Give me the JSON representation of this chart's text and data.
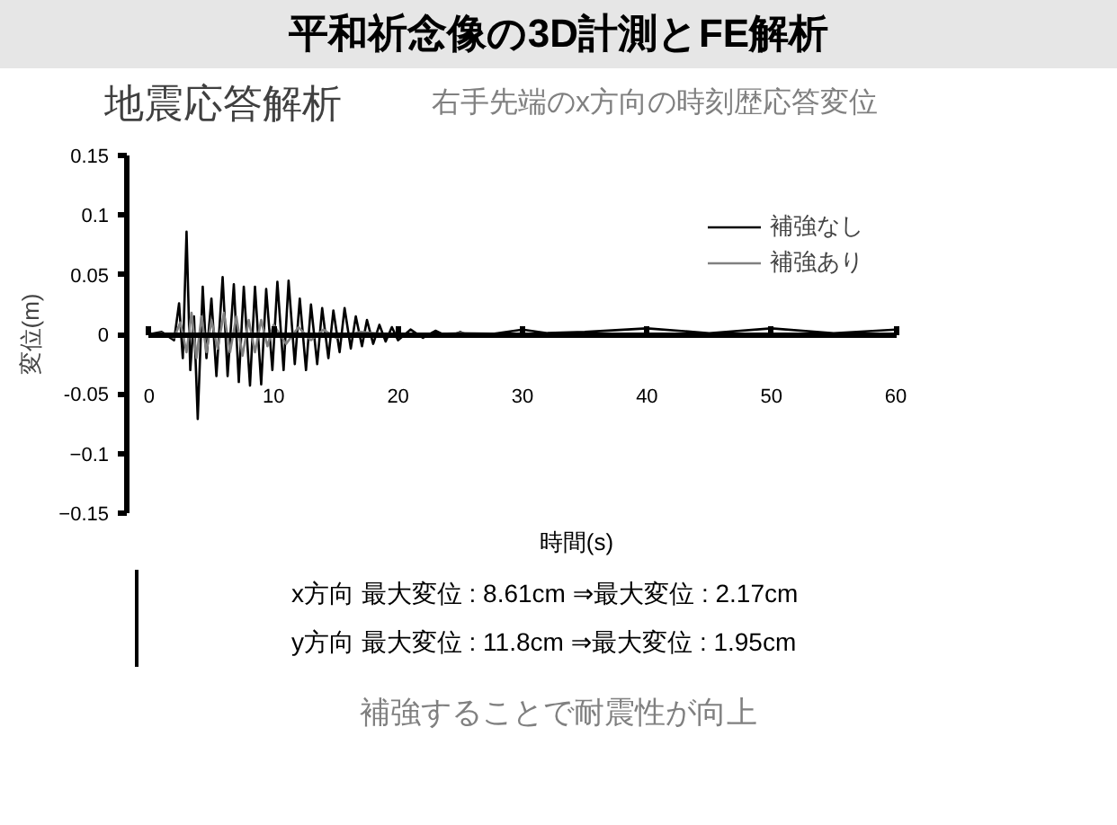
{
  "chart_data": {
    "type": "line",
    "title": "平和祈念像の3D計測とFE解析",
    "subtitle": "地震応答解析",
    "xlabel": "時間(s)",
    "ylabel": "変位(m)",
    "annotations": [
      "右手先端のx方向の時刻歴応答変位",
      "x方向  最大変位 : 8.61cm ⇒最大変位 : 2.17cm",
      "y方向  最大変位 : 11.8cm ⇒最大変位 : 1.95cm",
      "補強することで耐震性が向上"
    ],
    "xlim": [
      0,
      60
    ],
    "ylim": [
      -0.15,
      0.15
    ],
    "xticks": [
      0,
      10,
      20,
      30,
      40,
      50,
      60
    ],
    "yticks": [
      -0.15,
      -0.1,
      -0.05,
      0,
      0.05,
      0.1,
      0.15
    ],
    "legend": "top right",
    "series": [
      {
        "name": "補強なし",
        "color": "#000000",
        "x": [
          0,
          1,
          2,
          2.4,
          2.7,
          3.0,
          3.3,
          3.6,
          3.9,
          4.3,
          4.6,
          5.0,
          5.4,
          5.9,
          6.3,
          6.8,
          7.2,
          7.6,
          8.1,
          8.5,
          9.0,
          9.4,
          9.9,
          10.3,
          10.8,
          11.2,
          11.7,
          12.1,
          12.6,
          13.0,
          13.5,
          13.9,
          14.4,
          14.8,
          15.3,
          15.7,
          16.2,
          16.6,
          17.1,
          17.5,
          18.0,
          18.5,
          19.0,
          19.5,
          20,
          21,
          22,
          23,
          24,
          25,
          26,
          28,
          30,
          32,
          35,
          40,
          45,
          50,
          55,
          60
        ],
        "values": [
          0,
          0.002,
          -0.005,
          0.026,
          -0.02,
          0.086,
          -0.03,
          0.015,
          -0.071,
          0.04,
          -0.02,
          0.03,
          -0.035,
          0.048,
          -0.035,
          0.042,
          -0.04,
          0.04,
          -0.043,
          0.04,
          -0.042,
          0.038,
          -0.03,
          0.044,
          -0.03,
          0.045,
          -0.025,
          0.03,
          -0.03,
          0.025,
          -0.025,
          0.022,
          -0.02,
          0.02,
          -0.015,
          0.022,
          -0.012,
          0.015,
          -0.01,
          0.012,
          -0.008,
          0.008,
          -0.006,
          0.006,
          -0.005,
          0.004,
          -0.003,
          0.003,
          -0.002,
          0.002,
          -0.002,
          0.001,
          0.004,
          0.001,
          0.002,
          0.005,
          0.001,
          0.005,
          0.001,
          0.004
        ]
      },
      {
        "name": "補強あり",
        "color": "#808080",
        "x": [
          0,
          1,
          2,
          2.5,
          3.0,
          3.4,
          3.8,
          4.2,
          4.6,
          5.0,
          5.5,
          6.0,
          6.5,
          7.0,
          7.5,
          8.0,
          8.5,
          9.0,
          9.5,
          10,
          11,
          12,
          13,
          14,
          15,
          17,
          20,
          25,
          30,
          40,
          50,
          60
        ],
        "values": [
          0,
          0.001,
          -0.003,
          0.01,
          -0.015,
          0.018,
          -0.02,
          0.015,
          -0.015,
          0.012,
          -0.012,
          0.018,
          -0.015,
          0.015,
          -0.018,
          0.012,
          -0.015,
          0.012,
          -0.01,
          0.008,
          -0.008,
          0.006,
          -0.005,
          0.004,
          -0.003,
          0.002,
          -0.001,
          0.001,
          0,
          0,
          0,
          0
        ]
      }
    ]
  }
}
